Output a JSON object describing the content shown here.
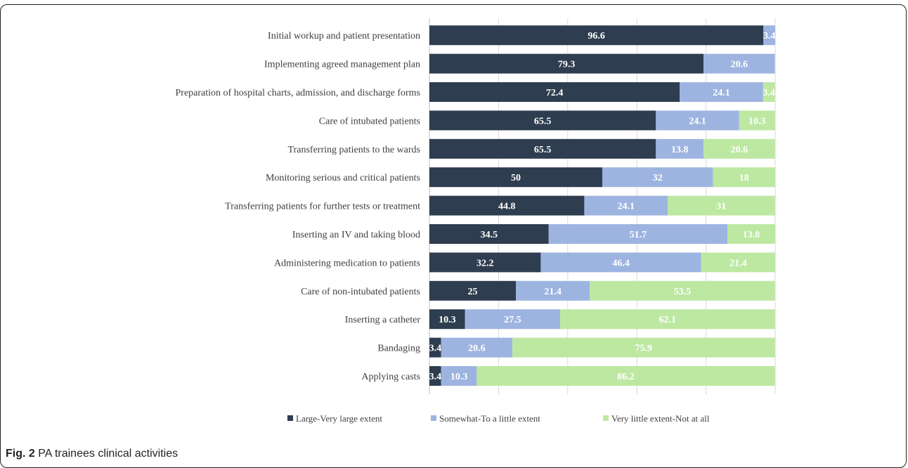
{
  "chart_data": {
    "type": "bar",
    "orientation": "horizontal",
    "stacked": true,
    "categories": [
      "Initial workup and patient presentation",
      "Implementing agreed management plan",
      "Preparation of hospital charts, admission, and discharge forms",
      "Care of intubated patients",
      "Transferring patients to the wards",
      "Monitoring serious and critical patients",
      "Transferring patients for further tests or treatment",
      "Inserting an IV and taking blood",
      "Administering medication to patients",
      "Care of non-intubated patients ",
      "Inserting a catheter",
      "Bandaging",
      "Applying casts"
    ],
    "series": [
      {
        "name": "Large-Very large extent",
        "color": "#2e3d4f",
        "values": [
          96.6,
          79.3,
          72.4,
          65.5,
          65.5,
          50,
          44.8,
          34.5,
          32.2,
          25,
          10.3,
          3.4,
          3.4
        ]
      },
      {
        "name": "Somewhat-To a little extent",
        "color": "#9eb4e0",
        "values": [
          3.4,
          20.6,
          24.1,
          24.1,
          13.8,
          32,
          24.1,
          51.7,
          46.4,
          21.4,
          27.5,
          20.6,
          10.3
        ]
      },
      {
        "name": "Very little extent-Not at all",
        "color": "#bde8a2",
        "values": [
          0,
          0,
          3.4,
          10.3,
          20.6,
          18,
          31,
          13.8,
          21.4,
          53.5,
          62.1,
          75.9,
          86.2
        ]
      }
    ],
    "xlim": [
      0,
      100
    ],
    "grid": true,
    "legend_position": "bottom"
  },
  "caption": {
    "label": "Fig. 2",
    "text": " PA trainees clinical activities"
  }
}
